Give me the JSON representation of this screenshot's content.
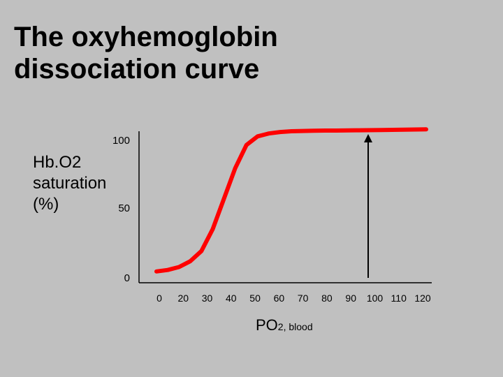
{
  "title": {
    "line1": "The oxyhemoglobin",
    "line2": "dissociation curve"
  },
  "y_label": {
    "line1": "Hb.O2",
    "line2": "saturation",
    "line3": "(%)"
  },
  "x_label": {
    "main": "PO",
    "sub": "2, blood"
  },
  "colors": {
    "background": "#c0c0c0",
    "curve": "#ff0000",
    "axis": "#000000",
    "arrow": "#000000"
  },
  "chart_data": {
    "type": "line",
    "title": "The oxyhemoglobin dissociation curve",
    "xlabel": "PO2, blood",
    "ylabel": "Hb.O2 saturation (%)",
    "x_ticks": [
      "0",
      "20",
      "30",
      "40",
      "50",
      "60",
      "70",
      "80",
      "90",
      "100",
      "110",
      "120"
    ],
    "y_ticks": [
      "0",
      "50",
      "100"
    ],
    "xlim": [
      0,
      120
    ],
    "ylim": [
      0,
      100
    ],
    "grid": false,
    "series": [
      {
        "color": "#ff0000",
        "x": [
          0,
          5,
          10,
          15,
          20,
          25,
          30,
          35,
          40,
          45,
          50,
          55,
          60,
          65,
          70,
          75,
          80,
          90,
          100,
          110,
          120
        ],
        "y": [
          3,
          4,
          6,
          10,
          17,
          32,
          53,
          74,
          90,
          96,
          98,
          99,
          99.5,
          99.7,
          99.9,
          100,
          100,
          100.2,
          100.4,
          100.6,
          100.8
        ]
      }
    ],
    "annotations": [
      {
        "type": "arrow",
        "x": 90,
        "from_y": 0,
        "to_y": 100
      }
    ]
  }
}
